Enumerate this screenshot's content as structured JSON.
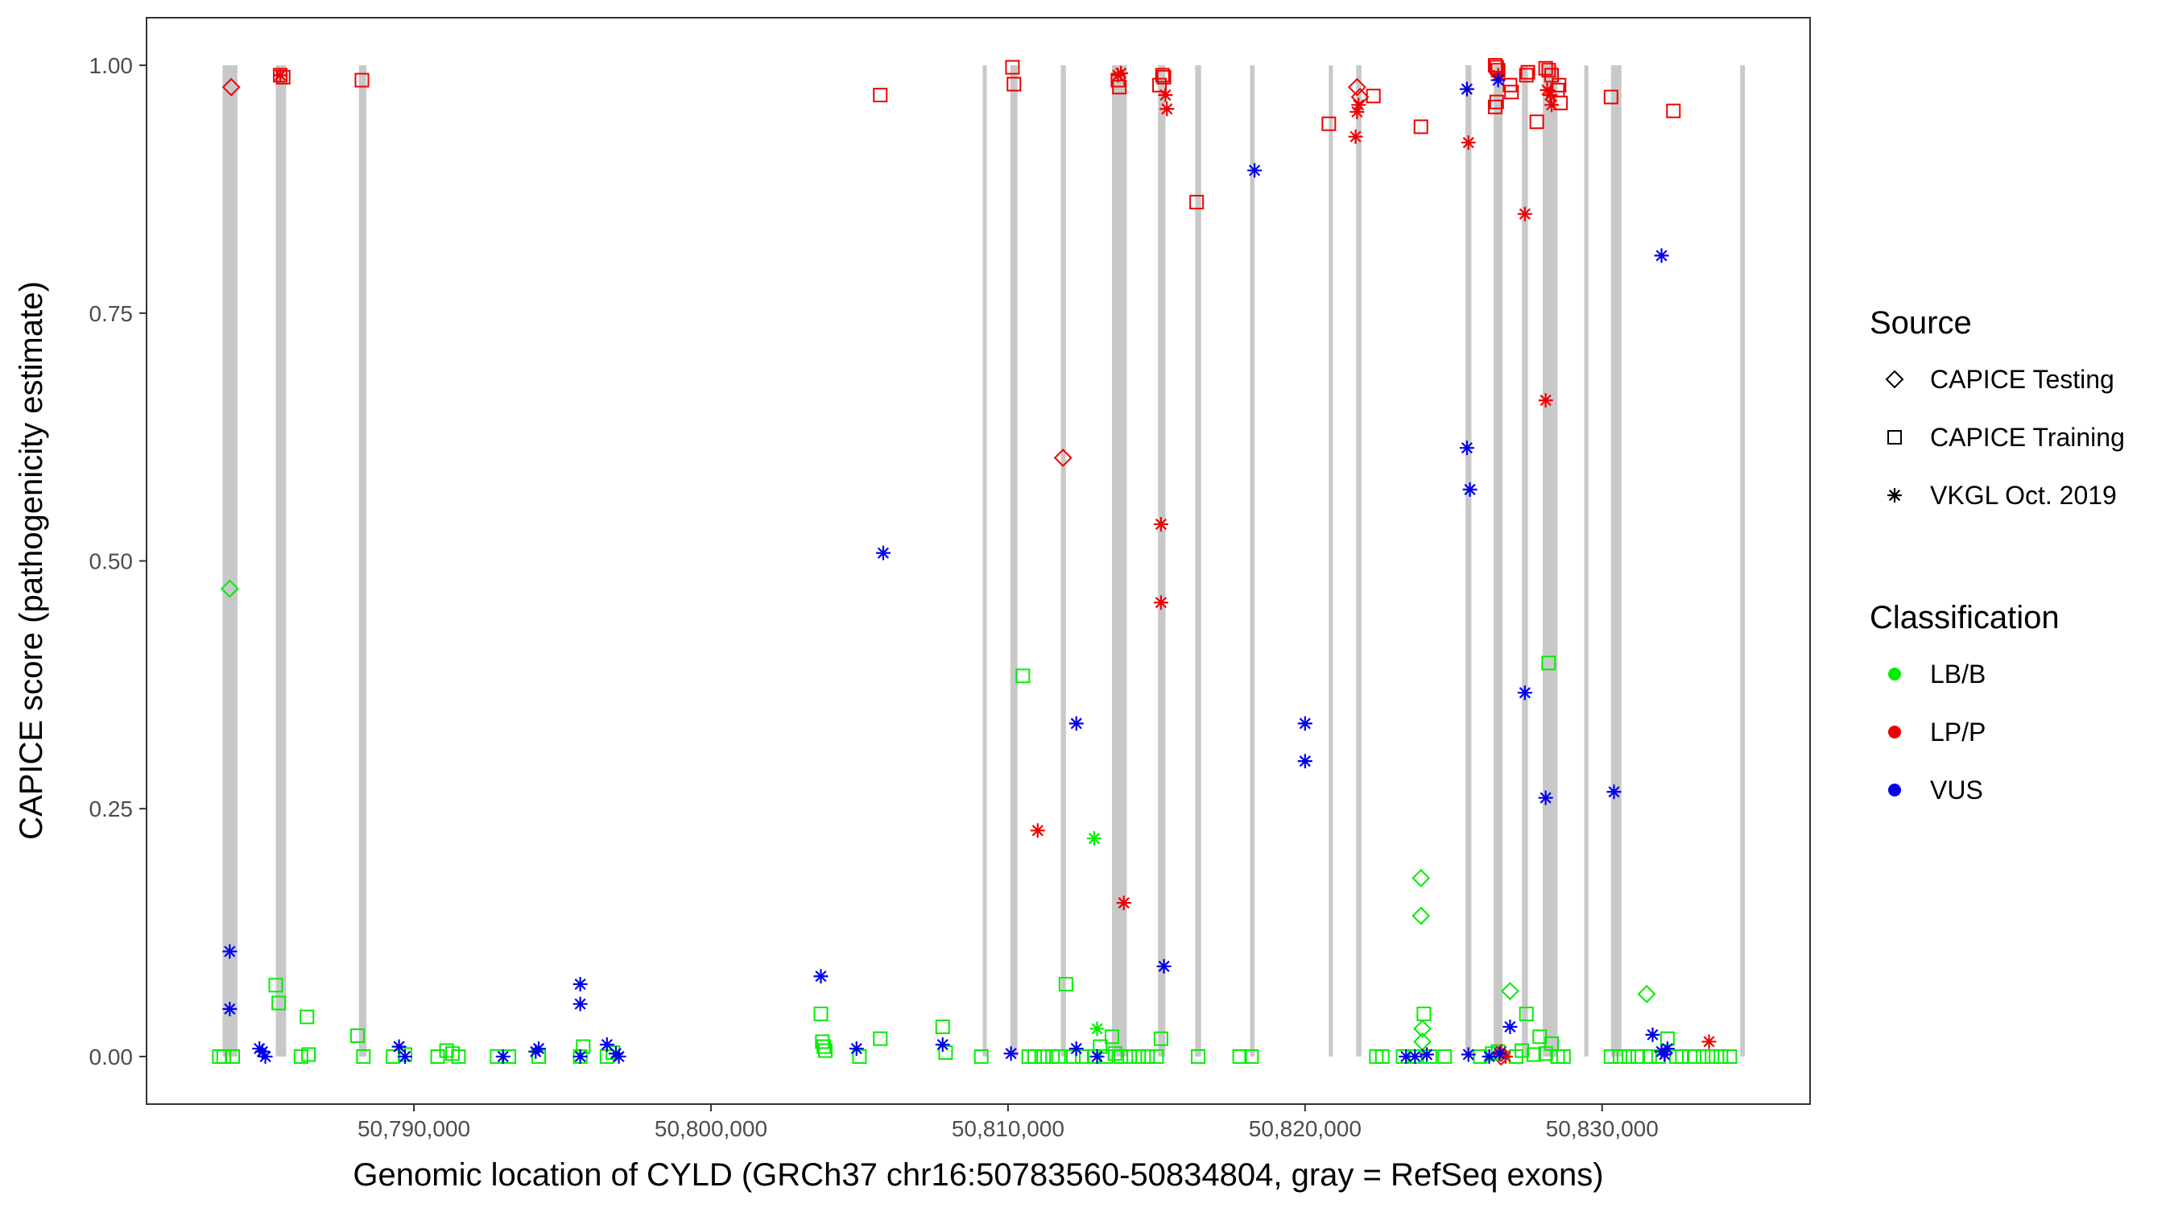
{
  "chart_data": {
    "type": "scatter",
    "title": "",
    "xlabel": "Genomic location of CYLD (GRCh37 chr16:50783560-50834804, gray = RefSeq exons)",
    "ylabel": "CAPICE score (pathogenicity estimate)",
    "xlim": [
      50781000,
      50837000
    ],
    "ylim": [
      -0.048,
      1.048
    ],
    "x_ticks": [
      50790000,
      50800000,
      50810000,
      50820000,
      50830000
    ],
    "x_tick_labels": [
      "50,790,000",
      "50,800,000",
      "50,810,000",
      "50,820,000",
      "50,830,000"
    ],
    "y_ticks": [
      0,
      0.25,
      0.5,
      0.75,
      1.0
    ],
    "y_tick_labels": [
      "0.00",
      "0.25",
      "0.50",
      "0.75",
      "1.00"
    ],
    "grid": false,
    "legend_position": "right",
    "exons": [
      [
        50783560,
        50784060
      ],
      [
        50785350,
        50785700
      ],
      [
        50788150,
        50788400
      ],
      [
        50809150,
        50809250
      ],
      [
        50810080,
        50810320
      ],
      [
        50811780,
        50811950
      ],
      [
        50813500,
        50814000
      ],
      [
        50815050,
        50815300
      ],
      [
        50816300,
        50816500
      ],
      [
        50818150,
        50818300
      ],
      [
        50820800,
        50820900
      ],
      [
        50821720,
        50821900
      ],
      [
        50825400,
        50825600
      ],
      [
        50826350,
        50826650
      ],
      [
        50827300,
        50827500
      ],
      [
        50828000,
        50828500
      ],
      [
        50829400,
        50829500
      ],
      [
        50830300,
        50830650
      ],
      [
        50834650,
        50834804
      ]
    ],
    "legend": {
      "source_title": "Source",
      "source_items": [
        {
          "label": "CAPICE Testing",
          "shape": "diamond"
        },
        {
          "label": "CAPICE Training",
          "shape": "square"
        },
        {
          "label": "VKGL Oct. 2019",
          "shape": "asterisk"
        }
      ],
      "class_title": "Classification",
      "class_items": [
        {
          "label": "LB/B",
          "color": "#00ee00"
        },
        {
          "label": "LP/P",
          "color": "#ee0000"
        },
        {
          "label": "VUS",
          "color": "#0000ee"
        }
      ]
    },
    "colors": {
      "LB/B": "#00ee00",
      "LP/P": "#ee0000",
      "VUS": "#0000ee"
    },
    "series": [
      {
        "source": "CAPICE Testing",
        "classification": "LP/P",
        "points": [
          [
            50783850,
            0.978
          ],
          [
            50811850,
            0.604
          ],
          [
            50821750,
            0.978
          ],
          [
            50821850,
            0.968
          ],
          [
            50826600,
            0.0
          ]
        ]
      },
      {
        "source": "CAPICE Testing",
        "classification": "LB/B",
        "points": [
          [
            50783800,
            0.472
          ],
          [
            50823900,
            0.18
          ],
          [
            50823900,
            0.142
          ],
          [
            50823950,
            0.028
          ],
          [
            50823950,
            0.015
          ],
          [
            50826900,
            0.066
          ],
          [
            50831500,
            0.063
          ]
        ]
      },
      {
        "source": "CAPICE Training",
        "classification": "LP/P",
        "points": [
          [
            50785500,
            0.99
          ],
          [
            50785600,
            0.988
          ],
          [
            50788250,
            0.985
          ],
          [
            50805700,
            0.97
          ],
          [
            50810150,
            0.998
          ],
          [
            50810200,
            0.981
          ],
          [
            50813700,
            0.985
          ],
          [
            50813750,
            0.978
          ],
          [
            50815100,
            0.98
          ],
          [
            50815200,
            0.99
          ],
          [
            50815250,
            0.988
          ],
          [
            50816350,
            0.862
          ],
          [
            50820800,
            0.941
          ],
          [
            50822300,
            0.969
          ],
          [
            50823900,
            0.938
          ],
          [
            50826400,
            1.0
          ],
          [
            50826450,
            0.998
          ],
          [
            50826500,
            0.995
          ],
          [
            50826400,
            0.958
          ],
          [
            50826450,
            0.963
          ],
          [
            50826900,
            0.98
          ],
          [
            50826950,
            0.973
          ],
          [
            50827450,
            0.99
          ],
          [
            50827500,
            0.993
          ],
          [
            50827800,
            0.943
          ],
          [
            50828100,
            0.997
          ],
          [
            50828200,
            0.995
          ],
          [
            50828300,
            0.99
          ],
          [
            50828500,
            0.975
          ],
          [
            50828550,
            0.98
          ],
          [
            50828600,
            0.962
          ],
          [
            50830300,
            0.968
          ],
          [
            50832400,
            0.954
          ]
        ]
      },
      {
        "source": "CAPICE Training",
        "classification": "LB/B",
        "points": [
          [
            50783450,
            0.0
          ],
          [
            50783600,
            0.0
          ],
          [
            50783900,
            0.0
          ],
          [
            50785350,
            0.072
          ],
          [
            50785450,
            0.054
          ],
          [
            50786200,
            0.0
          ],
          [
            50786400,
            0.04
          ],
          [
            50786450,
            0.002
          ],
          [
            50788100,
            0.021
          ],
          [
            50788300,
            0.0
          ],
          [
            50789300,
            0.0
          ],
          [
            50789700,
            0.002
          ],
          [
            50790800,
            0.0
          ],
          [
            50791100,
            0.006
          ],
          [
            50791300,
            0.003
          ],
          [
            50791500,
            0.0
          ],
          [
            50792800,
            0.0
          ],
          [
            50793200,
            0.0
          ],
          [
            50794200,
            0.0
          ],
          [
            50795600,
            0.0
          ],
          [
            50795700,
            0.01
          ],
          [
            50796500,
            0.0
          ],
          [
            50796700,
            0.004
          ],
          [
            50803700,
            0.043
          ],
          [
            50803750,
            0.015
          ],
          [
            50803800,
            0.01
          ],
          [
            50803850,
            0.006
          ],
          [
            50805000,
            0.0
          ],
          [
            50805700,
            0.018
          ],
          [
            50807800,
            0.03
          ],
          [
            50807900,
            0.004
          ],
          [
            50809100,
            0.0
          ],
          [
            50810500,
            0.384
          ],
          [
            50810700,
            0.0
          ],
          [
            50810900,
            0.0
          ],
          [
            50811200,
            0.0
          ],
          [
            50811500,
            0.0
          ],
          [
            50811700,
            0.0
          ],
          [
            50811950,
            0.073
          ],
          [
            50812200,
            0.0
          ],
          [
            50812500,
            0.0
          ],
          [
            50812900,
            0.0
          ],
          [
            50813100,
            0.01
          ],
          [
            50813300,
            0.0
          ],
          [
            50813500,
            0.02
          ],
          [
            50813600,
            0.003
          ],
          [
            50813800,
            0.0
          ],
          [
            50814100,
            0.0
          ],
          [
            50814400,
            0.0
          ],
          [
            50814700,
            0.0
          ],
          [
            50815000,
            0.0
          ],
          [
            50815150,
            0.018
          ],
          [
            50816400,
            0.0
          ],
          [
            50817800,
            0.0
          ],
          [
            50818200,
            0.0
          ],
          [
            50822400,
            0.0
          ],
          [
            50822600,
            0.0
          ],
          [
            50823300,
            0.0
          ],
          [
            50823700,
            0.0
          ],
          [
            50824000,
            0.043
          ],
          [
            50824200,
            0.0
          ],
          [
            50824700,
            0.0
          ],
          [
            50825900,
            0.0
          ],
          [
            50826300,
            0.003
          ],
          [
            50826500,
            0.005
          ],
          [
            50827100,
            0.0
          ],
          [
            50827300,
            0.006
          ],
          [
            50827450,
            0.043
          ],
          [
            50827700,
            0.002
          ],
          [
            50827900,
            0.02
          ],
          [
            50828100,
            0.003
          ],
          [
            50828200,
            0.397
          ],
          [
            50828300,
            0.013
          ],
          [
            50828500,
            0.0
          ],
          [
            50828700,
            0.0
          ],
          [
            50830300,
            0.0
          ],
          [
            50830600,
            0.0
          ],
          [
            50830900,
            0.0
          ],
          [
            50831200,
            0.0
          ],
          [
            50831600,
            0.0
          ],
          [
            50831900,
            0.0
          ],
          [
            50832200,
            0.018
          ],
          [
            50832500,
            0.0
          ],
          [
            50832700,
            0.0
          ],
          [
            50833100,
            0.0
          ],
          [
            50833400,
            0.0
          ],
          [
            50833700,
            0.0
          ],
          [
            50834000,
            0.0
          ],
          [
            50834300,
            0.0
          ]
        ]
      },
      {
        "source": "VKGL Oct. 2019",
        "classification": "LP/P",
        "points": [
          [
            50785500,
            0.99
          ],
          [
            50811000,
            0.228
          ],
          [
            50813700,
            0.99
          ],
          [
            50813800,
            0.992
          ],
          [
            50813900,
            0.155
          ],
          [
            50815150,
            0.537
          ],
          [
            50815150,
            0.458
          ],
          [
            50815300,
            0.97
          ],
          [
            50815350,
            0.956
          ],
          [
            50821700,
            0.928
          ],
          [
            50821750,
            0.953
          ],
          [
            50821800,
            0.96
          ],
          [
            50825500,
            0.922
          ],
          [
            50826500,
            0.99
          ],
          [
            50826600,
            0.005
          ],
          [
            50826750,
            0.0
          ],
          [
            50827400,
            0.85
          ],
          [
            50828100,
            0.662
          ],
          [
            50828150,
            0.975
          ],
          [
            50828250,
            0.97
          ],
          [
            50828300,
            0.96
          ],
          [
            50833600,
            0.015
          ]
        ]
      },
      {
        "source": "VKGL Oct. 2019",
        "classification": "LB/B",
        "points": [
          [
            50812900,
            0.22
          ],
          [
            50813000,
            0.028
          ]
        ]
      },
      {
        "source": "VKGL Oct. 2019",
        "classification": "VUS",
        "points": [
          [
            50783800,
            0.106
          ],
          [
            50783800,
            0.048
          ],
          [
            50784800,
            0.008
          ],
          [
            50784900,
            0.005
          ],
          [
            50785000,
            0.0
          ],
          [
            50789500,
            0.01
          ],
          [
            50789700,
            0.0
          ],
          [
            50793000,
            0.0
          ],
          [
            50794100,
            0.005
          ],
          [
            50794200,
            0.008
          ],
          [
            50795600,
            0.073
          ],
          [
            50795600,
            0.053
          ],
          [
            50795600,
            0.0
          ],
          [
            50796500,
            0.012
          ],
          [
            50796800,
            0.003
          ],
          [
            50796900,
            0.0
          ],
          [
            50803700,
            0.081
          ],
          [
            50804900,
            0.008
          ],
          [
            50805800,
            0.508
          ],
          [
            50807800,
            0.012
          ],
          [
            50810100,
            0.003
          ],
          [
            50812300,
            0.336
          ],
          [
            50812300,
            0.008
          ],
          [
            50813000,
            0.0
          ],
          [
            50815250,
            0.091
          ],
          [
            50818300,
            0.894
          ],
          [
            50820000,
            0.336
          ],
          [
            50820000,
            0.298
          ],
          [
            50823400,
            0.0
          ],
          [
            50823700,
            0.0
          ],
          [
            50824100,
            0.002
          ],
          [
            50825450,
            0.976
          ],
          [
            50825450,
            0.614
          ],
          [
            50825550,
            0.572
          ],
          [
            50825500,
            0.002
          ],
          [
            50826200,
            0.0
          ],
          [
            50826500,
            0.985
          ],
          [
            50826550,
            0.003
          ],
          [
            50826900,
            0.03
          ],
          [
            50827400,
            0.367
          ],
          [
            50828100,
            0.261
          ],
          [
            50830400,
            0.267
          ],
          [
            50831700,
            0.022
          ],
          [
            50832000,
            0.808
          ],
          [
            50832000,
            0.005
          ],
          [
            50832100,
            0.002
          ],
          [
            50832200,
            0.008
          ]
        ]
      }
    ]
  }
}
